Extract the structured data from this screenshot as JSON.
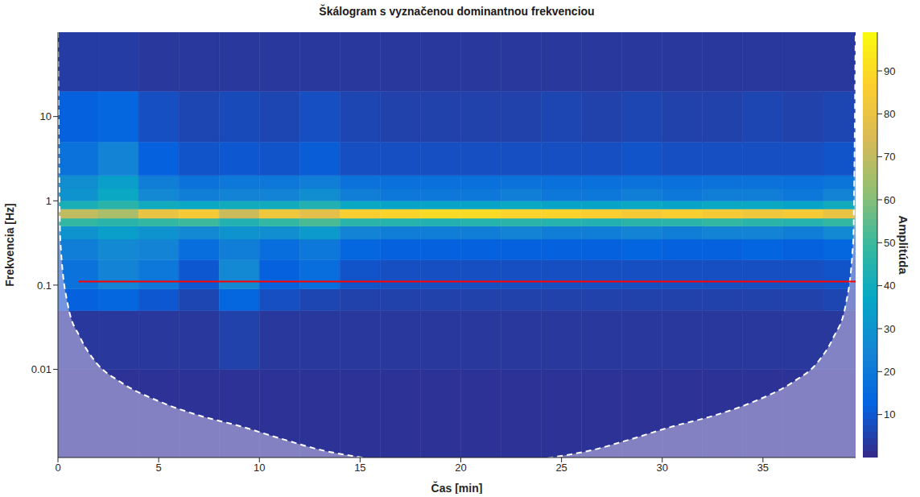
{
  "chart_data": {
    "type": "heatmap",
    "title": "Škálogram s vyznačenou dominantnou frekvenciou",
    "x_label": "Čas [min]",
    "y_label": "Frekvencia [Hz]",
    "xlim": [
      0,
      39.6
    ],
    "xticks": [
      0,
      5,
      10,
      15,
      20,
      25,
      30,
      35
    ],
    "ylim": [
      0.0009,
      100
    ],
    "yticks": [
      0.01,
      0.1,
      1,
      10
    ],
    "log": "y",
    "time_edges": [
      0,
      2,
      4,
      6,
      8,
      10,
      12,
      14,
      16,
      18,
      20,
      22,
      24,
      26,
      28,
      30,
      32,
      34,
      36,
      38,
      39.6
    ],
    "freq_edges": [
      0.0009,
      0.01,
      0.05,
      0.09,
      0.2,
      0.35,
      0.5,
      0.62,
      0.8,
      1.0,
      1.4,
      2,
      5,
      20,
      100
    ],
    "values": [
      [
        2,
        2,
        2,
        2,
        2,
        2,
        2,
        2,
        2,
        2,
        2,
        2,
        2,
        2,
        2,
        2,
        2,
        2,
        2,
        2
      ],
      [
        3,
        3,
        3,
        3,
        5,
        3,
        3,
        3,
        3,
        3,
        3,
        3,
        3,
        3,
        3,
        3,
        3,
        3,
        3,
        3
      ],
      [
        12,
        14,
        10,
        6,
        14,
        8,
        6,
        5,
        5,
        5,
        5,
        5,
        5,
        5,
        5,
        5,
        5,
        5,
        5,
        6
      ],
      [
        18,
        24,
        20,
        10,
        26,
        12,
        16,
        9,
        8,
        8,
        8,
        8,
        8,
        8,
        8,
        8,
        8,
        8,
        8,
        9
      ],
      [
        22,
        26,
        24,
        16,
        22,
        16,
        20,
        14,
        12,
        12,
        12,
        12,
        12,
        12,
        13,
        12,
        12,
        13,
        12,
        14
      ],
      [
        30,
        34,
        30,
        26,
        30,
        28,
        32,
        24,
        22,
        22,
        22,
        24,
        22,
        22,
        24,
        22,
        24,
        24,
        22,
        26
      ],
      [
        48,
        46,
        48,
        50,
        44,
        48,
        52,
        46,
        45,
        44,
        45,
        46,
        45,
        44,
        46,
        46,
        48,
        46,
        45,
        48
      ],
      [
        70,
        66,
        80,
        84,
        72,
        82,
        78,
        86,
        88,
        90,
        90,
        88,
        88,
        86,
        84,
        86,
        84,
        82,
        84,
        80
      ],
      [
        42,
        46,
        40,
        38,
        40,
        40,
        44,
        38,
        36,
        36,
        36,
        38,
        36,
        36,
        38,
        36,
        38,
        38,
        36,
        40
      ],
      [
        30,
        38,
        26,
        22,
        24,
        24,
        28,
        22,
        20,
        20,
        20,
        22,
        20,
        20,
        22,
        20,
        22,
        22,
        20,
        24
      ],
      [
        28,
        34,
        22,
        18,
        20,
        20,
        22,
        18,
        17,
        17,
        17,
        18,
        17,
        17,
        18,
        17,
        18,
        18,
        17,
        19
      ],
      [
        18,
        24,
        12,
        9,
        10,
        9,
        11,
        8,
        8,
        8,
        8,
        8,
        8,
        8,
        9,
        8,
        8,
        8,
        8,
        9
      ],
      [
        12,
        14,
        8,
        6,
        7,
        6,
        8,
        6,
        5,
        5,
        5,
        5,
        6,
        5,
        6,
        5,
        5,
        6,
        5,
        6
      ],
      [
        4,
        4,
        3,
        3,
        3,
        3,
        3,
        3,
        3,
        3,
        3,
        3,
        3,
        3,
        3,
        3,
        3,
        3,
        3,
        3
      ]
    ],
    "colorbar": {
      "label": "Amplitúda",
      "range": [
        0,
        99
      ],
      "ticks": [
        10,
        20,
        30,
        40,
        50,
        60,
        70,
        80,
        90
      ]
    },
    "dominant_frequency": {
      "x": [
        1,
        39.6
      ],
      "value": 0.11,
      "color": "#ff0000"
    },
    "cone_of_influence": {
      "x": [
        0,
        0.12,
        0.5,
        1.1,
        1.9,
        3.1,
        5.1,
        7.1,
        9.1,
        11.1,
        13.1,
        15.1,
        17.5,
        19.8,
        22.1,
        24.5,
        26.5,
        28.5,
        30.5,
        32.5,
        34.5,
        36.5,
        37.7,
        38.5,
        39.1,
        39.48,
        39.6
      ],
      "values": [
        100,
        0.33,
        0.057,
        0.024,
        0.012,
        0.0071,
        0.0041,
        0.0028,
        0.0021,
        0.0015,
        0.0011,
        0.0009,
        0.00075,
        0.0006,
        0.00075,
        0.0009,
        0.0011,
        0.0015,
        0.0021,
        0.0028,
        0.0041,
        0.0071,
        0.012,
        0.024,
        0.057,
        0.33,
        100
      ],
      "color": "#ffffff",
      "line_style": "dashed"
    }
  }
}
